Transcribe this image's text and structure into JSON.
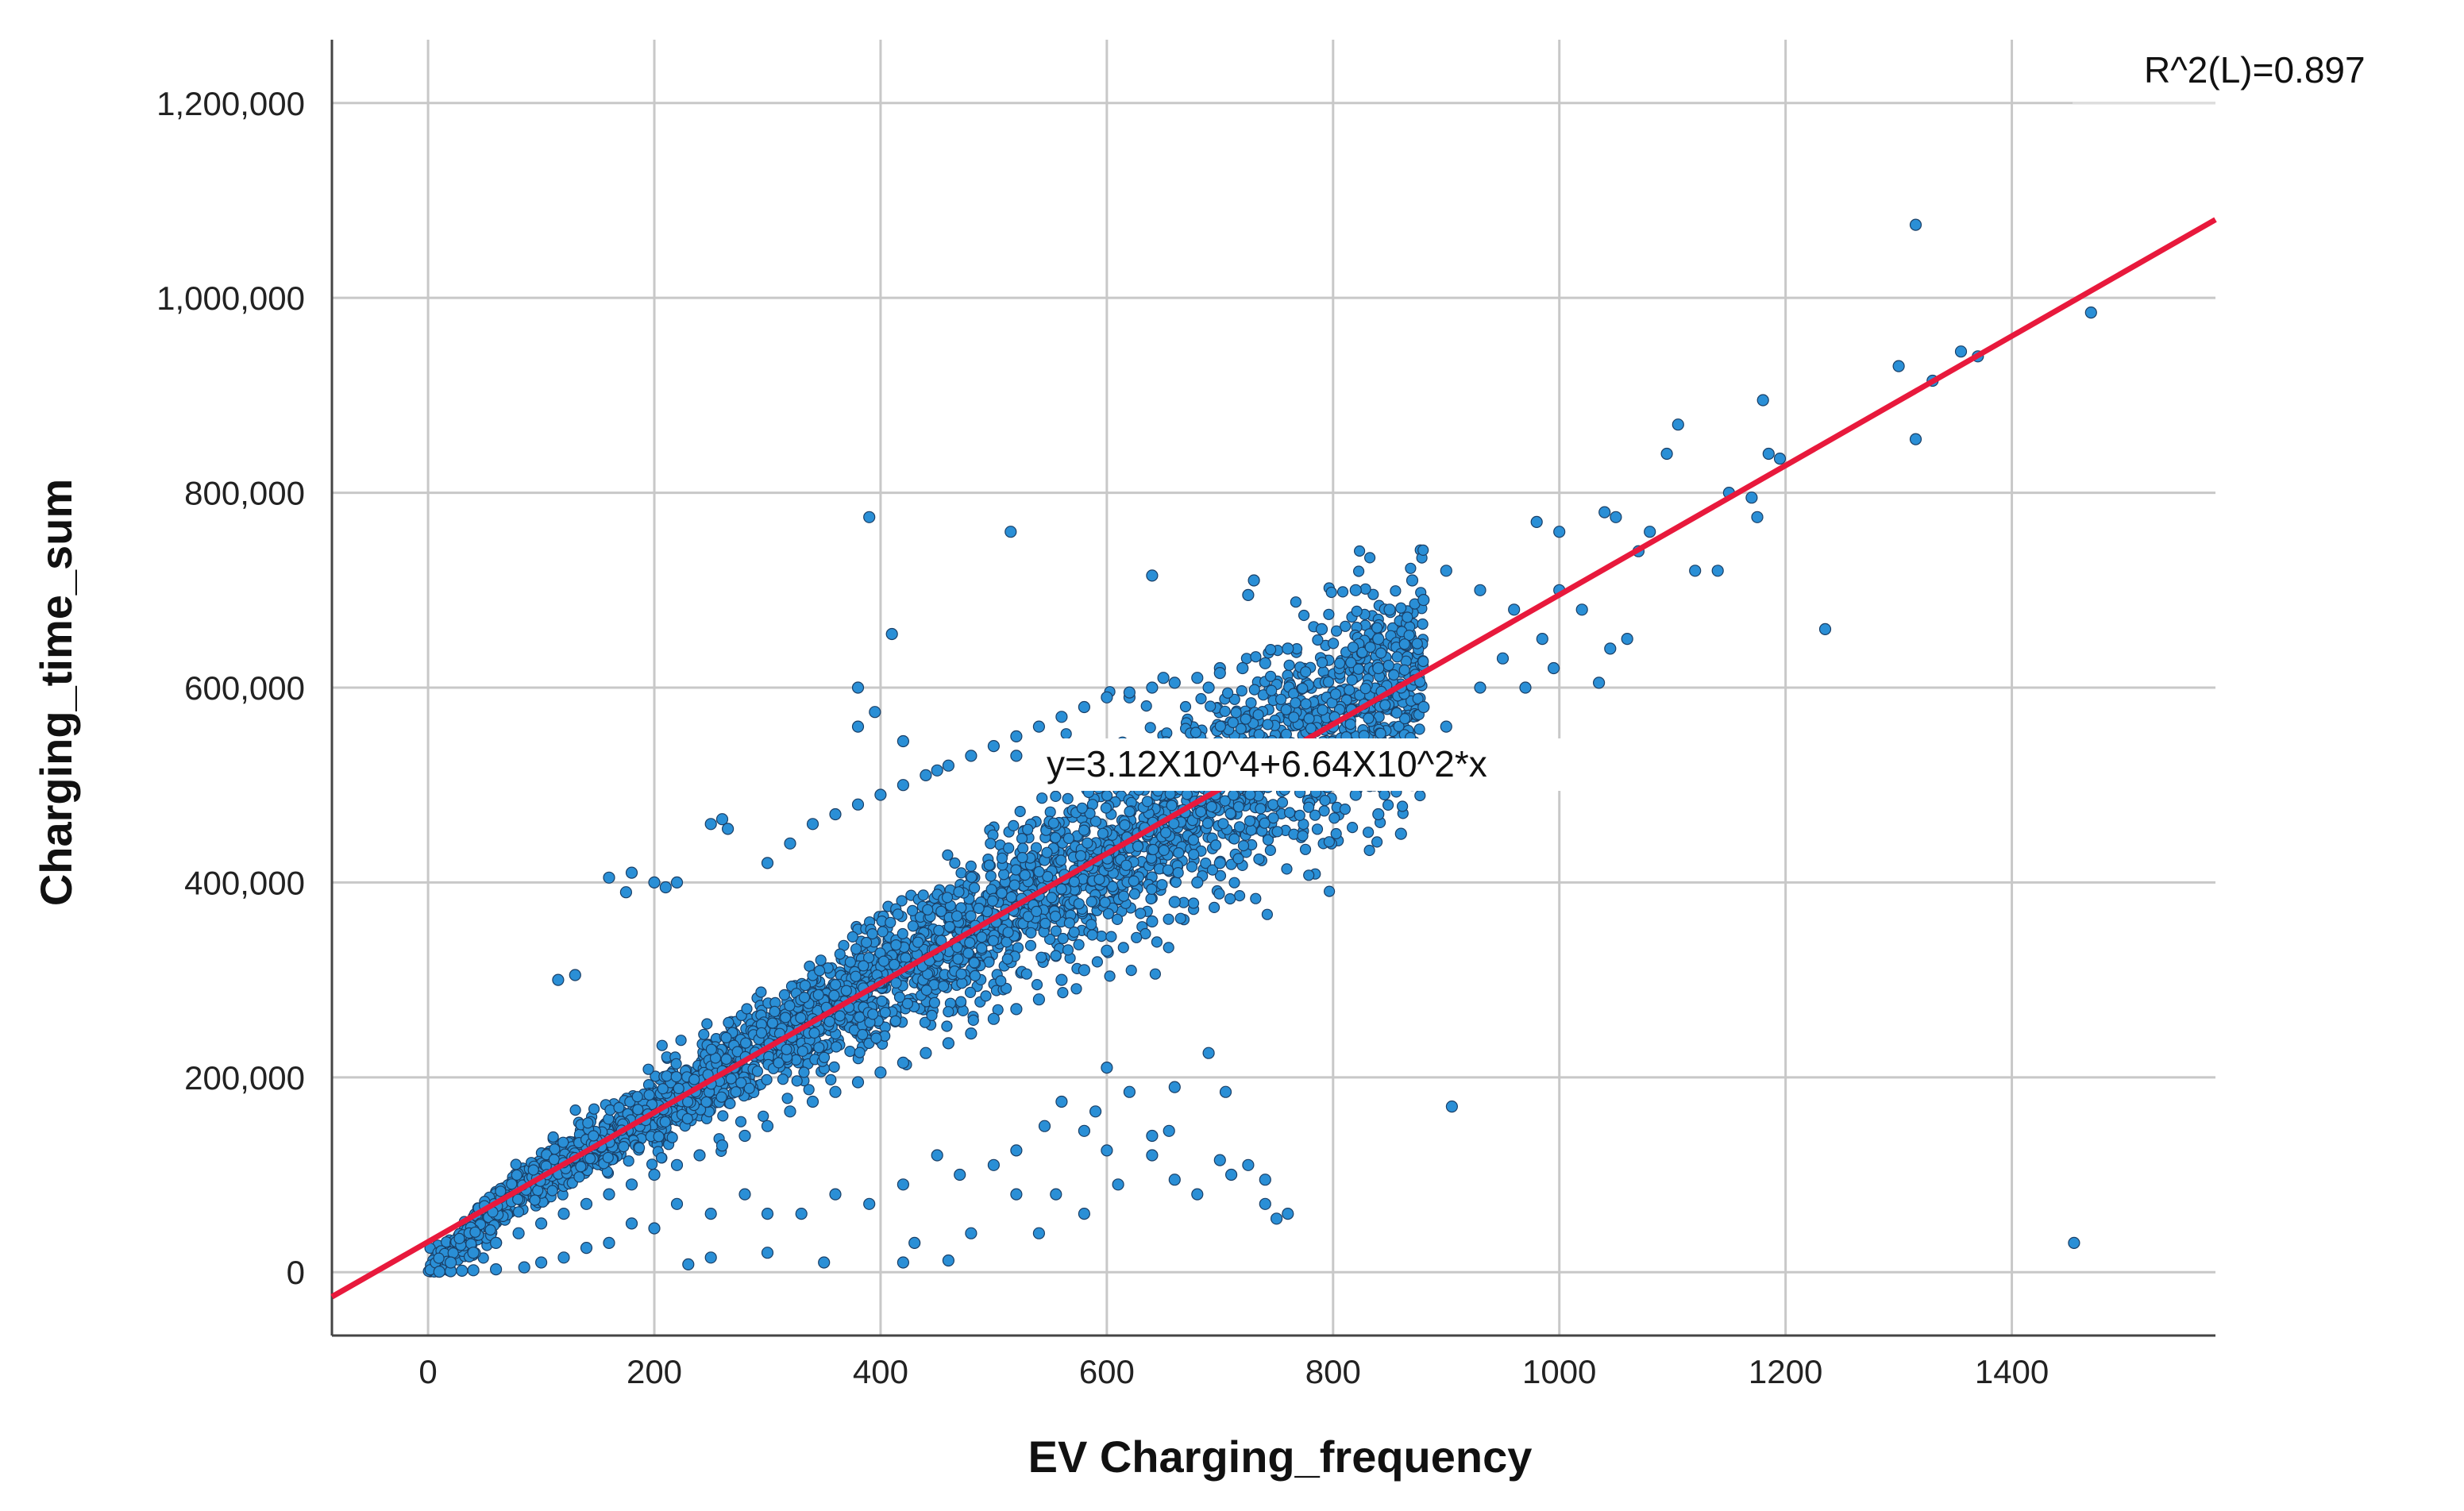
{
  "chart_data": {
    "type": "scatter",
    "xlabel": "EV Charging_frequency",
    "ylabel": "Charging_time_sum",
    "xlim": [
      -85,
      1580
    ],
    "ylim": [
      -65000,
      1265000
    ],
    "grid": true,
    "x_ticks": [
      {
        "value": 0,
        "label": "0"
      },
      {
        "value": 200,
        "label": "200"
      },
      {
        "value": 400,
        "label": "400"
      },
      {
        "value": 600,
        "label": "600"
      },
      {
        "value": 800,
        "label": "800"
      },
      {
        "value": 1000,
        "label": "1000"
      },
      {
        "value": 1200,
        "label": "1200"
      },
      {
        "value": 1400,
        "label": "1400"
      }
    ],
    "y_ticks": [
      {
        "value": 0,
        "label": "0"
      },
      {
        "value": 200000,
        "label": "200,000"
      },
      {
        "value": 400000,
        "label": "400,000"
      },
      {
        "value": 600000,
        "label": "600,000"
      },
      {
        "value": 800000,
        "label": "800,000"
      },
      {
        "value": 1000000,
        "label": "1,000,000"
      },
      {
        "value": 1200000,
        "label": "1,200,000"
      }
    ],
    "fit_line": {
      "intercept": 31200,
      "slope": 664,
      "x_range": [
        -85,
        1580
      ],
      "color": "#e8193c",
      "equation_label": "y=3.12X10^4+6.64X10^2*x",
      "r_squared_label": "R^2(L)=0.897"
    },
    "point_color": "#2a8fd6",
    "point_edge_color": "#1a3f66",
    "points": [
      [
        1315,
        1075000
      ],
      [
        1470,
        985000
      ],
      [
        1300,
        930000
      ],
      [
        1330,
        915000
      ],
      [
        1355,
        945000
      ],
      [
        1370,
        940000
      ],
      [
        1180,
        895000
      ],
      [
        1315,
        855000
      ],
      [
        1185,
        840000
      ],
      [
        1195,
        835000
      ],
      [
        1105,
        870000
      ],
      [
        1095,
        840000
      ],
      [
        1150,
        800000
      ],
      [
        1170,
        795000
      ],
      [
        1175,
        775000
      ],
      [
        1120,
        720000
      ],
      [
        1140,
        720000
      ],
      [
        1235,
        660000
      ],
      [
        1455,
        30000
      ],
      [
        905,
        170000
      ],
      [
        390,
        775000
      ],
      [
        515,
        760000
      ],
      [
        410,
        655000
      ],
      [
        640,
        715000
      ],
      [
        730,
        710000
      ],
      [
        725,
        695000
      ],
      [
        380,
        600000
      ],
      [
        395,
        575000
      ],
      [
        380,
        560000
      ],
      [
        420,
        545000
      ],
      [
        450,
        515000
      ],
      [
        520,
        530000
      ],
      [
        260,
        465000
      ],
      [
        250,
        460000
      ],
      [
        265,
        455000
      ],
      [
        180,
        410000
      ],
      [
        200,
        400000
      ],
      [
        220,
        400000
      ],
      [
        210,
        395000
      ],
      [
        160,
        405000
      ],
      [
        175,
        390000
      ],
      [
        115,
        300000
      ],
      [
        130,
        305000
      ],
      [
        690,
        225000
      ],
      [
        600,
        210000
      ],
      [
        660,
        190000
      ],
      [
        620,
        185000
      ],
      [
        705,
        185000
      ],
      [
        560,
        175000
      ],
      [
        590,
        165000
      ],
      [
        545,
        150000
      ],
      [
        580,
        145000
      ],
      [
        520,
        125000
      ],
      [
        600,
        125000
      ],
      [
        640,
        120000
      ],
      [
        700,
        115000
      ],
      [
        725,
        110000
      ],
      [
        740,
        95000
      ],
      [
        660,
        95000
      ],
      [
        610,
        90000
      ],
      [
        555,
        80000
      ],
      [
        500,
        110000
      ],
      [
        470,
        100000
      ],
      [
        450,
        120000
      ],
      [
        420,
        90000
      ],
      [
        390,
        70000
      ],
      [
        360,
        80000
      ],
      [
        330,
        60000
      ],
      [
        300,
        60000
      ],
      [
        280,
        80000
      ],
      [
        250,
        60000
      ],
      [
        220,
        70000
      ],
      [
        200,
        45000
      ],
      [
        180,
        50000
      ],
      [
        160,
        30000
      ],
      [
        140,
        25000
      ],
      [
        120,
        15000
      ],
      [
        100,
        10000
      ],
      [
        85,
        5000
      ],
      [
        60,
        3000
      ],
      [
        40,
        2000
      ],
      [
        30,
        1500
      ],
      [
        20,
        1000
      ],
      [
        10,
        500
      ],
      [
        420,
        10000
      ],
      [
        460,
        12000
      ],
      [
        250,
        15000
      ],
      [
        230,
        8000
      ],
      [
        540,
        40000
      ],
      [
        580,
        60000
      ],
      [
        430,
        30000
      ],
      [
        480,
        40000
      ],
      [
        350,
        10000
      ],
      [
        300,
        20000
      ],
      [
        520,
        80000
      ],
      [
        740,
        70000
      ],
      [
        760,
        60000
      ],
      [
        750,
        55000
      ],
      [
        680,
        80000
      ],
      [
        710,
        100000
      ],
      [
        640,
        140000
      ],
      [
        655,
        145000
      ],
      [
        980,
        770000
      ],
      [
        1000,
        760000
      ],
      [
        1040,
        780000
      ],
      [
        1050,
        775000
      ],
      [
        1070,
        740000
      ],
      [
        1080,
        760000
      ],
      [
        1000,
        700000
      ],
      [
        1020,
        680000
      ],
      [
        960,
        680000
      ],
      [
        985,
        650000
      ],
      [
        995,
        620000
      ],
      [
        1035,
        605000
      ],
      [
        1045,
        640000
      ],
      [
        1060,
        650000
      ],
      [
        930,
        700000
      ],
      [
        900,
        720000
      ],
      [
        880,
        690000
      ],
      [
        870,
        710000
      ],
      [
        850,
        680000
      ],
      [
        840,
        650000
      ],
      [
        820,
        700000
      ],
      [
        790,
        660000
      ],
      [
        760,
        640000
      ],
      [
        700,
        620000
      ],
      [
        690,
        600000
      ],
      [
        650,
        610000
      ],
      [
        620,
        590000
      ],
      [
        840,
        620000
      ],
      [
        860,
        600000
      ],
      [
        880,
        580000
      ],
      [
        900,
        560000
      ],
      [
        930,
        600000
      ],
      [
        950,
        630000
      ],
      [
        970,
        600000
      ],
      [
        800,
        560000
      ],
      [
        780,
        540000
      ],
      [
        760,
        500000
      ],
      [
        870,
        500000
      ],
      [
        860,
        450000
      ],
      [
        840,
        470000
      ],
      [
        820,
        490000
      ],
      [
        700,
        420000
      ],
      [
        680,
        400000
      ],
      [
        660,
        380000
      ],
      [
        640,
        360000
      ],
      [
        600,
        330000
      ],
      [
        580,
        310000
      ],
      [
        560,
        300000
      ],
      [
        540,
        280000
      ],
      [
        520,
        270000
      ],
      [
        500,
        260000
      ],
      [
        480,
        245000
      ],
      [
        460,
        235000
      ],
      [
        440,
        225000
      ],
      [
        420,
        215000
      ],
      [
        400,
        205000
      ],
      [
        380,
        195000
      ],
      [
        360,
        185000
      ],
      [
        340,
        175000
      ],
      [
        320,
        165000
      ],
      [
        300,
        150000
      ],
      [
        280,
        140000
      ],
      [
        260,
        130000
      ],
      [
        240,
        120000
      ],
      [
        220,
        110000
      ],
      [
        200,
        100000
      ],
      [
        180,
        90000
      ],
      [
        160,
        80000
      ],
      [
        140,
        70000
      ],
      [
        120,
        60000
      ],
      [
        100,
        50000
      ],
      [
        80,
        40000
      ],
      [
        60,
        30000
      ],
      [
        40,
        20000
      ],
      [
        20,
        10000
      ],
      [
        300,
        420000
      ],
      [
        320,
        440000
      ],
      [
        340,
        460000
      ],
      [
        360,
        470000
      ],
      [
        380,
        480000
      ],
      [
        400,
        490000
      ],
      [
        420,
        500000
      ],
      [
        440,
        510000
      ],
      [
        460,
        520000
      ],
      [
        480,
        530000
      ],
      [
        500,
        540000
      ],
      [
        520,
        550000
      ],
      [
        540,
        560000
      ],
      [
        560,
        570000
      ],
      [
        580,
        580000
      ],
      [
        600,
        590000
      ],
      [
        620,
        595000
      ],
      [
        640,
        600000
      ],
      [
        660,
        605000
      ],
      [
        680,
        610000
      ],
      [
        700,
        615000
      ],
      [
        720,
        620000
      ],
      [
        740,
        625000
      ]
    ],
    "cloud": {
      "count": 3500,
      "x_range": [
        0,
        880
      ],
      "center_slope": 664,
      "center_intercept": 31200,
      "color": "#2a8fd6"
    }
  }
}
